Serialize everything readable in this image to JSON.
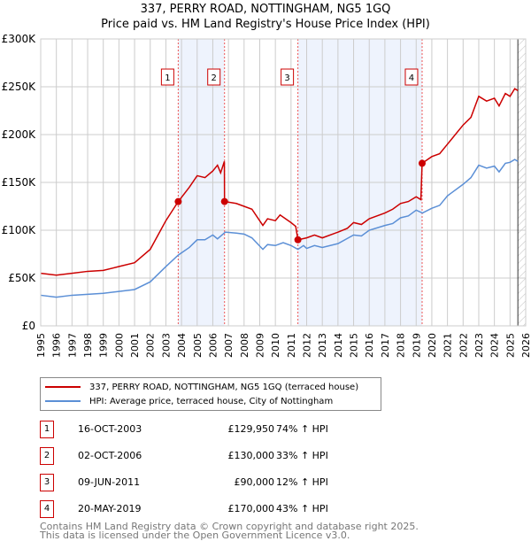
{
  "chart_data": {
    "type": "line",
    "title": "337, PERRY ROAD, NOTTINGHAM, NG5 1GQ",
    "subtitle": "Price paid vs. HM Land Registry's House Price Index (HPI)",
    "xlim": [
      1995,
      2026
    ],
    "ylim": [
      0,
      300000
    ],
    "yticks": [
      0,
      50000,
      100000,
      150000,
      200000,
      250000,
      300000
    ],
    "ytick_labels": [
      "£0",
      "£50K",
      "£100K",
      "£150K",
      "£200K",
      "£250K",
      "£300K"
    ],
    "xticks": [
      1995,
      1996,
      1997,
      1998,
      1999,
      2000,
      2001,
      2002,
      2003,
      2004,
      2005,
      2006,
      2007,
      2008,
      2009,
      2010,
      2011,
      2012,
      2013,
      2014,
      2015,
      2016,
      2017,
      2018,
      2019,
      2020,
      2021,
      2022,
      2023,
      2024,
      2025,
      2026
    ],
    "grid": true,
    "shaded_ranges": [
      [
        2003.79,
        2006.75
      ],
      [
        2011.44,
        2019.38
      ]
    ],
    "hatched_from": 2025.5,
    "series": [
      {
        "name": "337, PERRY ROAD, NOTTINGHAM, NG5 1GQ (terraced house)",
        "color": "#cc0000",
        "x": [
          1995,
          1996,
          1997,
          1998,
          1999,
          2000,
          2001,
          2002,
          2003,
          2003.79,
          2004.5,
          2005,
          2005.5,
          2006,
          2006.3,
          2006.5,
          2006.74,
          2006.75,
          2007.5,
          2008,
          2008.5,
          2009.2,
          2009.5,
          2010,
          2010.3,
          2011,
          2011.3,
          2011.44,
          2012,
          2012.5,
          2013,
          2014,
          2014.6,
          2015,
          2015.5,
          2016,
          2017,
          2017.5,
          2018,
          2018.5,
          2019,
          2019.3,
          2019.38,
          2020,
          2020.5,
          2021,
          2021.5,
          2022,
          2022.5,
          2023,
          2023.5,
          2024,
          2024.3,
          2024.7,
          2025,
          2025.3,
          2025.5
        ],
        "y": [
          55000,
          53000,
          55000,
          57000,
          58000,
          62000,
          66000,
          80000,
          110000,
          129950,
          145000,
          157000,
          155000,
          162000,
          168000,
          160000,
          172000,
          130000,
          128000,
          125000,
          122000,
          105000,
          112000,
          110000,
          116000,
          108000,
          104000,
          90000,
          92000,
          95000,
          92000,
          98000,
          102000,
          108000,
          106000,
          112000,
          118000,
          122000,
          128000,
          130000,
          135000,
          132000,
          170000,
          177000,
          180000,
          190000,
          200000,
          210000,
          218000,
          240000,
          235000,
          238000,
          230000,
          243000,
          240000,
          248000,
          246000
        ]
      },
      {
        "name": "HPI: Average price, terraced house, City of Nottingham",
        "color": "#5b8fd6",
        "x": [
          1995,
          1996,
          1997,
          1998,
          1999,
          2000,
          2001,
          2002,
          2003,
          2003.79,
          2004.5,
          2005,
          2005.5,
          2006,
          2006.3,
          2006.8,
          2007.5,
          2008,
          2008.5,
          2009.2,
          2009.5,
          2010,
          2010.5,
          2011,
          2011.44,
          2011.8,
          2012,
          2012.5,
          2013,
          2014,
          2015,
          2015.5,
          2016,
          2017,
          2017.5,
          2018,
          2018.5,
          2019,
          2019.4,
          2020,
          2020.5,
          2021,
          2022,
          2022.5,
          2023,
          2023.5,
          2024,
          2024.3,
          2024.7,
          2025,
          2025.3,
          2025.5
        ],
        "y": [
          32000,
          30000,
          32000,
          33000,
          34000,
          36000,
          38000,
          46000,
          62000,
          74000,
          82000,
          90000,
          90000,
          95000,
          91000,
          98000,
          97000,
          96000,
          92000,
          80000,
          85000,
          84000,
          87000,
          84000,
          80000,
          84000,
          81000,
          84000,
          82000,
          86000,
          95000,
          94000,
          100000,
          105000,
          107000,
          113000,
          115000,
          121000,
          118000,
          123000,
          126000,
          136000,
          148000,
          155000,
          168000,
          165000,
          167000,
          161000,
          170000,
          171000,
          174000,
          172000
        ]
      }
    ],
    "sales": [
      {
        "label": "1",
        "x": 2003.79,
        "y": 129950
      },
      {
        "label": "2",
        "x": 2006.75,
        "y": 130000
      },
      {
        "label": "3",
        "x": 2011.44,
        "y": 90000
      },
      {
        "label": "4",
        "x": 2019.38,
        "y": 170000
      }
    ],
    "legend": "below"
  },
  "table": [
    {
      "n": "1",
      "date": "16-OCT-2003",
      "price": "£129,950",
      "hpi": "74% ↑ HPI"
    },
    {
      "n": "2",
      "date": "02-OCT-2006",
      "price": "£130,000",
      "hpi": "33% ↑ HPI"
    },
    {
      "n": "3",
      "date": "09-JUN-2011",
      "price": "£90,000",
      "hpi": "12% ↑ HPI"
    },
    {
      "n": "4",
      "date": "20-MAY-2019",
      "price": "£170,000",
      "hpi": "43% ↑ HPI"
    }
  ],
  "footer": [
    "Contains HM Land Registry data © Crown copyright and database right 2025.",
    "This data is licensed under the Open Government Licence v3.0."
  ]
}
